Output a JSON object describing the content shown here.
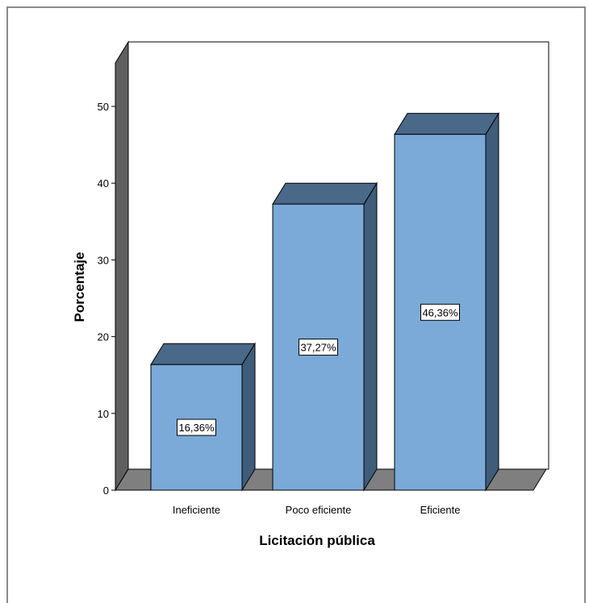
{
  "chart_data": {
    "type": "bar",
    "categories": [
      "Ineficiente",
      "Poco eficiente",
      "Eficiente"
    ],
    "values": [
      16.36,
      37.27,
      46.36
    ],
    "data_labels": [
      "16,36%",
      "37,27%",
      "46,36%"
    ],
    "xlabel": "Licitación pública",
    "ylabel": "Porcentaje",
    "ylim": [
      0,
      55
    ],
    "yticks": [
      0,
      10,
      20,
      30,
      40,
      50
    ],
    "grid": false,
    "three_d": true,
    "colors": {
      "bar_front": "#7BAAD8",
      "bar_top": "#4A6887",
      "bar_side": "#3F5C7A",
      "floor": "#7F7F7F",
      "wall": "#5F5F5F",
      "stroke": "#000000"
    }
  }
}
